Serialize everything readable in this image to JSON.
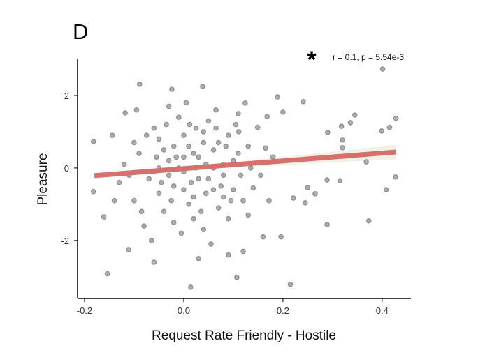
{
  "chart_data": {
    "type": "scatter",
    "panel_label": "D",
    "xlabel": "Request Rate Friendly - Hostile",
    "ylabel": "Pleasure",
    "xlim": [
      -0.214,
      0.458
    ],
    "ylim": [
      -3.6,
      3.0
    ],
    "xticks": [
      {
        "v": -0.2,
        "label": "-0.2"
      },
      {
        "v": 0.0,
        "label": "0.0"
      },
      {
        "v": 0.2,
        "label": "0.2"
      },
      {
        "v": 0.4,
        "label": "0.4"
      }
    ],
    "yticks": [
      {
        "v": 2,
        "label": "2"
      },
      {
        "v": 0,
        "label": "0"
      },
      {
        "v": -2,
        "label": "-2"
      }
    ],
    "grid": false,
    "annotation": {
      "significance": "*",
      "text": "r = 0.1, p = 5.54e-3"
    },
    "regression": {
      "x": [
        -0.18,
        0.428
      ],
      "y": [
        -0.21,
        0.44
      ],
      "color": "#d6706c"
    },
    "confidence_band": {
      "x": [
        -0.18,
        0.05,
        0.428
      ],
      "lower": [
        -0.29,
        -0.02,
        0.24
      ],
      "upper": [
        -0.13,
        0.08,
        0.64
      ],
      "color": "#f2f1e4"
    },
    "point_color": "#000000",
    "points": [
      [
        0.401,
        2.73
      ],
      [
        0.241,
        1.83
      ],
      [
        0.189,
        1.96
      ],
      [
        0.2,
        1.54
      ],
      [
        0.345,
        1.46
      ],
      [
        0.428,
        1.37
      ],
      [
        0.318,
        1.15
      ],
      [
        0.336,
        1.25
      ],
      [
        0.415,
        1.12
      ],
      [
        0.399,
        1.02
      ],
      [
        0.29,
        0.98
      ],
      [
        0.32,
        0.77
      ],
      [
        0.32,
        0.56
      ],
      [
        0.368,
        0.17
      ],
      [
        0.427,
        -0.25
      ],
      [
        0.408,
        -0.6
      ],
      [
        0.315,
        -0.35
      ],
      [
        0.289,
        -0.33
      ],
      [
        0.265,
        -0.71
      ],
      [
        0.245,
        -0.96
      ],
      [
        0.25,
        -0.54
      ],
      [
        0.221,
        -0.83
      ],
      [
        0.289,
        -1.56
      ],
      [
        0.373,
        -1.46
      ],
      [
        0.196,
        -1.9
      ],
      [
        0.215,
        -3.21
      ],
      [
        0.014,
        -3.29
      ],
      [
        0.107,
        -3.02
      ],
      [
        -0.154,
        -2.92
      ],
      [
        -0.111,
        -2.25
      ],
      [
        -0.161,
        -1.35
      ],
      [
        -0.182,
        -0.65
      ],
      [
        -0.182,
        0.73
      ],
      [
        -0.144,
        0.9
      ],
      [
        -0.089,
        2.31
      ],
      [
        -0.024,
        2.17
      ],
      [
        0.038,
        2.25
      ],
      [
        -0.118,
        1.52
      ],
      [
        0.124,
        1.79
      ],
      [
        0.168,
        1.42
      ],
      [
        0.149,
        1.12
      ],
      [
        0.111,
        1.0
      ],
      [
        0.165,
        0.55
      ],
      [
        0.18,
        0.3
      ],
      [
        0.155,
        -0.2
      ],
      [
        0.14,
        -0.55
      ],
      [
        0.172,
        -0.9
      ],
      [
        0.13,
        -1.3
      ],
      [
        0.16,
        -1.9
      ],
      [
        0.12,
        -2.3
      ],
      [
        -0.09,
        0.4
      ],
      [
        -0.07,
        -0.3
      ],
      [
        -0.1,
        -0.9
      ],
      [
        -0.06,
        1.1
      ],
      [
        -0.08,
        -1.6
      ],
      [
        -0.12,
        0.1
      ],
      [
        -0.13,
        -0.4
      ],
      [
        -0.05,
        0.8
      ],
      [
        -0.04,
        -1.2
      ],
      [
        -0.03,
        0.2
      ],
      [
        -0.02,
        -0.5
      ],
      [
        -0.01,
        1.4
      ],
      [
        0.0,
        -0.1
      ],
      [
        0.01,
        0.6
      ],
      [
        0.02,
        -0.8
      ],
      [
        0.03,
        0.3
      ],
      [
        0.04,
        1.0
      ],
      [
        0.05,
        -0.3
      ],
      [
        0.06,
        0.5
      ],
      [
        0.07,
        -1.1
      ],
      [
        0.08,
        0.1
      ],
      [
        0.09,
        0.9
      ],
      [
        0.1,
        -0.6
      ],
      [
        0.11,
        0.4
      ],
      [
        -0.06,
        -0.1
      ],
      [
        -0.05,
        -0.7
      ],
      [
        -0.04,
        0.5
      ],
      [
        -0.03,
        1.7
      ],
      [
        -0.02,
        -1.5
      ],
      [
        -0.01,
        0.0
      ],
      [
        0.0,
        0.9
      ],
      [
        0.01,
        -1.0
      ],
      [
        0.02,
        0.4
      ],
      [
        0.03,
        -0.3
      ],
      [
        0.04,
        -1.7
      ],
      [
        0.05,
        1.3
      ],
      [
        0.06,
        -0.6
      ],
      [
        0.07,
        0.7
      ],
      [
        0.08,
        -0.2
      ],
      [
        0.09,
        -1.4
      ],
      [
        0.1,
        0.2
      ],
      [
        0.11,
        1.5
      ],
      [
        0.12,
        -0.9
      ],
      [
        0.13,
        0.6
      ],
      [
        0.135,
        0.0
      ],
      [
        -0.075,
        0.9
      ],
      [
        -0.085,
        -1.2
      ],
      [
        -0.095,
        1.6
      ],
      [
        -0.065,
        -2.0
      ],
      [
        -0.045,
        -0.4
      ],
      [
        -0.035,
        1.2
      ],
      [
        -0.025,
        -0.9
      ],
      [
        -0.015,
        0.3
      ],
      [
        -0.005,
        -1.8
      ],
      [
        0.005,
        1.8
      ],
      [
        0.015,
        -0.4
      ],
      [
        0.025,
        1.1
      ],
      [
        0.035,
        -1.2
      ],
      [
        0.045,
        0.1
      ],
      [
        0.055,
        -2.1
      ],
      [
        0.065,
        1.6
      ],
      [
        0.075,
        -0.5
      ],
      [
        0.085,
        0.6
      ],
      [
        0.095,
        -0.9
      ],
      [
        0.105,
        1.2
      ],
      [
        0.115,
        -0.2
      ],
      [
        -0.11,
        -0.2
      ],
      [
        -0.1,
        0.7
      ],
      [
        -0.14,
        -0.9
      ],
      [
        -0.05,
        0.0
      ],
      [
        0.0,
        -0.6
      ],
      [
        0.02,
        -1.4
      ],
      [
        0.04,
        0.7
      ],
      [
        0.06,
        0.0
      ],
      [
        0.08,
        -0.8
      ],
      [
        0.0,
        0.3
      ],
      [
        -0.02,
        0.6
      ],
      [
        0.03,
        -2.5
      ],
      [
        -0.06,
        -2.6
      ],
      [
        0.09,
        -2.4
      ],
      [
        0.065,
        1.1
      ],
      [
        0.025,
        0.0
      ],
      [
        -0.03,
        -0.2
      ],
      [
        0.045,
        -0.7
      ],
      [
        0.012,
        1.2
      ],
      [
        -0.055,
        0.3
      ]
    ]
  }
}
